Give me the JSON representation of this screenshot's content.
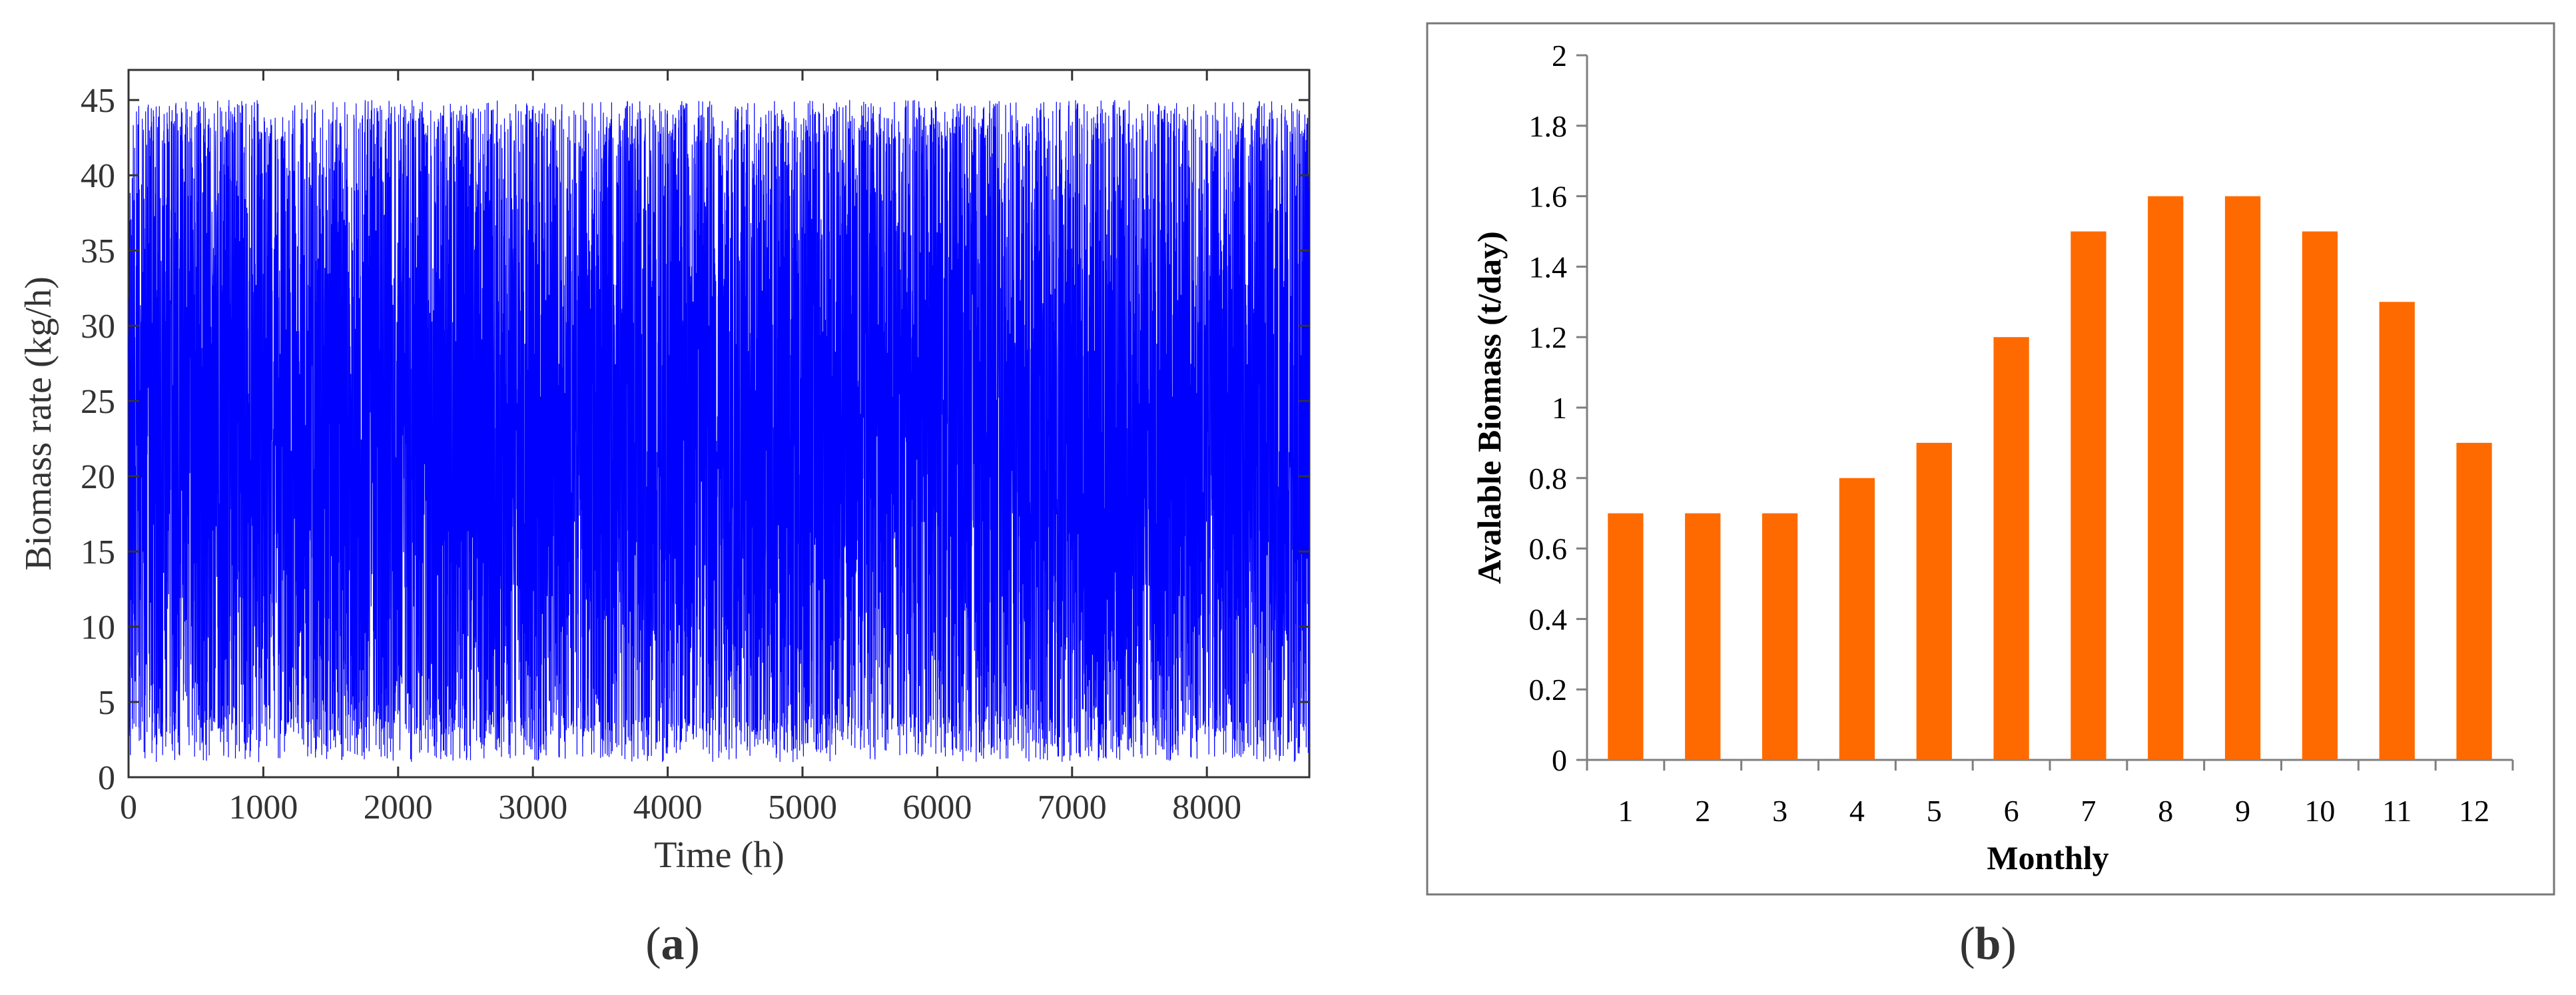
{
  "chart_data": [
    {
      "type": "line",
      "panel_label": "(a)",
      "xlabel": "Time (h)",
      "ylabel": "Biomass rate (kg/h)",
      "xlim": [
        0,
        8760
      ],
      "ylim": [
        0,
        47
      ],
      "xticks": [
        0,
        1000,
        2000,
        3000,
        4000,
        5000,
        6000,
        7000,
        8000
      ],
      "yticks": [
        0,
        5,
        10,
        15,
        20,
        25,
        30,
        35,
        40,
        45
      ],
      "series_color": "#0000ff",
      "series_summary": {
        "n_points": 8760,
        "min": 1,
        "max": 45,
        "typical_low": 3,
        "typical_high": 42
      },
      "grid": false
    },
    {
      "type": "bar",
      "panel_label": "(b)",
      "xlabel": "Monthly",
      "ylabel": "Avalable Biomass (t/day)",
      "categories": [
        "1",
        "2",
        "3",
        "4",
        "5",
        "6",
        "7",
        "8",
        "9",
        "10",
        "11",
        "12"
      ],
      "values": [
        0.7,
        0.7,
        0.7,
        0.8,
        0.9,
        1.2,
        1.5,
        1.6,
        1.6,
        1.5,
        1.3,
        0.9
      ],
      "ylim": [
        0,
        2
      ],
      "yticks": [
        "0",
        "0.2",
        "0.4",
        "0.6",
        "0.8",
        "1",
        "1.2",
        "1.4",
        "1.6",
        "1.8",
        "2"
      ],
      "bar_color": "#ff6a00",
      "grid": false
    }
  ],
  "captions": {
    "a": {
      "open": "(",
      "letter": "a",
      "close": ")"
    },
    "b": {
      "open": "(",
      "letter": "b",
      "close": ")"
    }
  }
}
